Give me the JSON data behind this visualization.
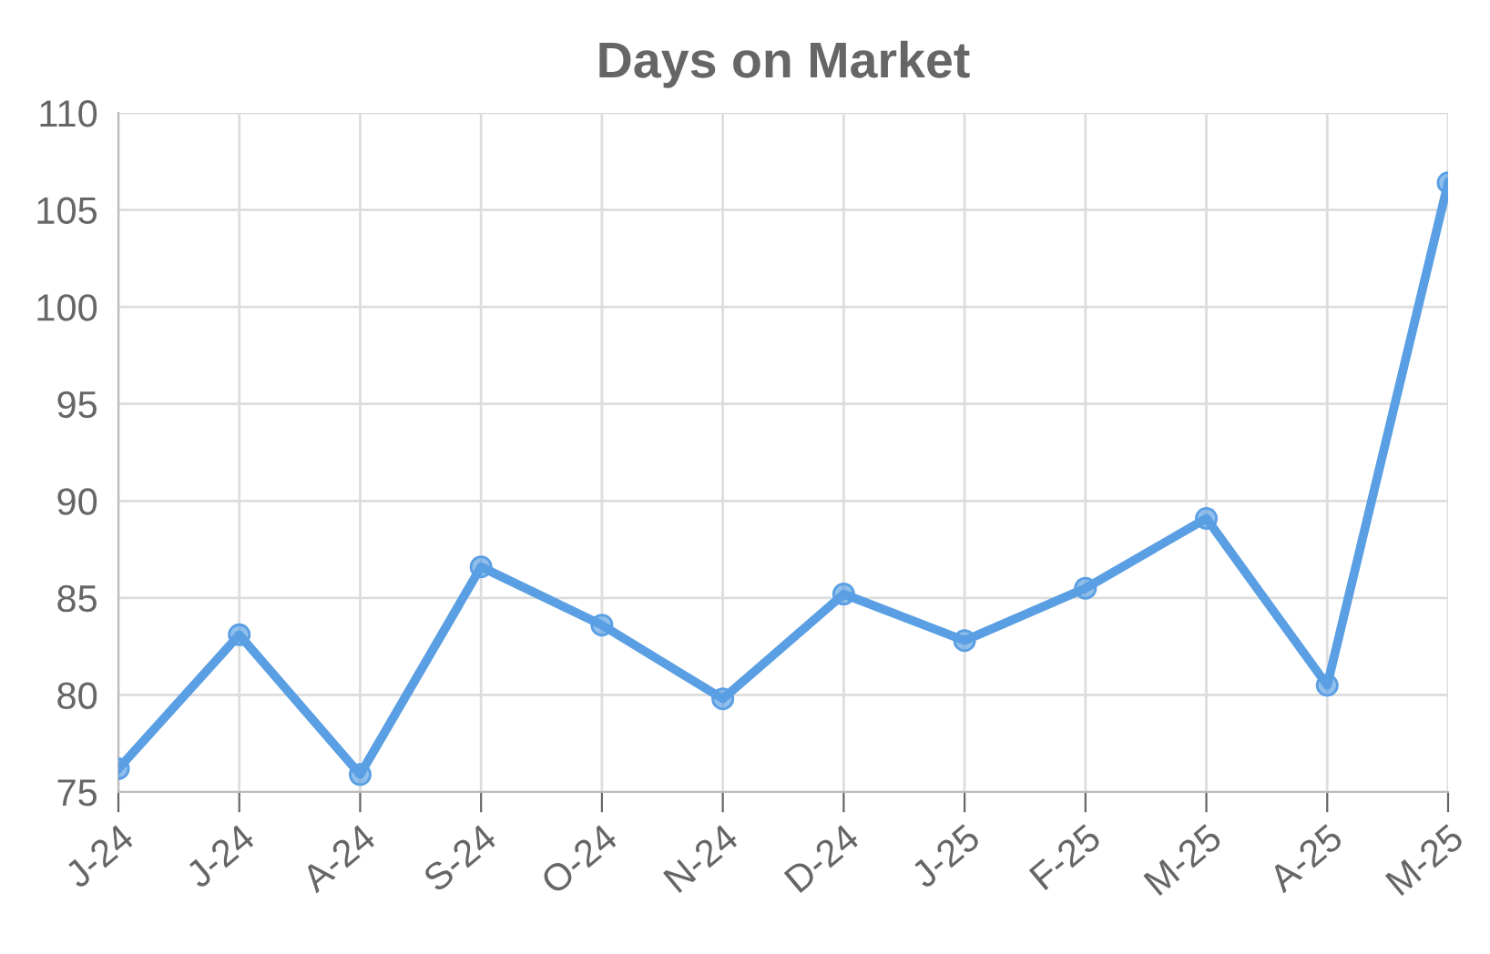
{
  "chart_data": {
    "type": "line",
    "title": "Days on Market",
    "categories": [
      "J-24",
      "J-24",
      "A-24",
      "S-24",
      "O-24",
      "N-24",
      "D-24",
      "J-25",
      "F-25",
      "M-25",
      "A-25",
      "M-25"
    ],
    "series": [
      {
        "color": "#5a9fe3",
        "values": [
          76.2,
          83.1,
          75.9,
          86.6,
          83.6,
          79.8,
          85.2,
          82.8,
          85.5,
          89.1,
          80.5,
          106.4
        ]
      }
    ],
    "ylim": [
      75,
      110
    ],
    "yticks": [
      75,
      80,
      85,
      90,
      95,
      100,
      105,
      110
    ],
    "grid": true,
    "marker": "circle",
    "line_style": "solid",
    "legend": false
  }
}
